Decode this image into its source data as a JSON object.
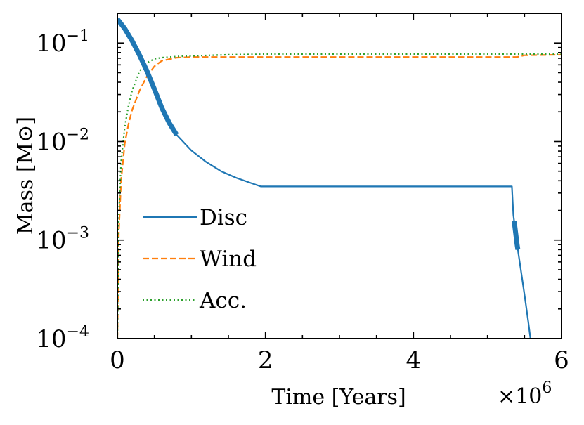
{
  "chart_data": {
    "type": "line",
    "title": "",
    "xlabel": "Time [Years]",
    "ylabel": "Mass [M⊙]",
    "x_multiplier": "×10",
    "x_multiplier_exp": "6",
    "xlim": [
      0,
      6
    ],
    "ylim": [
      0.0001,
      0.2
    ],
    "yscale": "log",
    "grid": false,
    "legend_position": "lower-left",
    "x_ticks": [
      {
        "value": 0,
        "label": "0"
      },
      {
        "value": 2,
        "label": "2"
      },
      {
        "value": 4,
        "label": "4"
      },
      {
        "value": 6,
        "label": "6"
      }
    ],
    "y_ticks": [
      {
        "value": 0.1,
        "base": "10",
        "exp": "−1"
      },
      {
        "value": 0.01,
        "base": "10",
        "exp": "−2"
      },
      {
        "value": 0.001,
        "base": "10",
        "exp": "−3"
      },
      {
        "value": 0.0001,
        "base": "10",
        "exp": "−4"
      }
    ],
    "series": [
      {
        "name": "Disc",
        "color": "#1f77b4",
        "style": "solid",
        "x": [
          0,
          0.1,
          0.2,
          0.3,
          0.4,
          0.5,
          0.6,
          0.7,
          0.8,
          1.0,
          1.2,
          1.4,
          1.6,
          1.8,
          1.94,
          2.5,
          3.0,
          4.0,
          5.0,
          5.33,
          5.35,
          5.4,
          5.45,
          5.5,
          5.55,
          5.58
        ],
        "y": [
          0.175,
          0.14,
          0.105,
          0.075,
          0.052,
          0.034,
          0.022,
          0.0155,
          0.0117,
          0.0081,
          0.0062,
          0.005,
          0.0043,
          0.0038,
          0.0035,
          0.0035,
          0.0035,
          0.0035,
          0.0035,
          0.0035,
          0.0018,
          0.0009,
          0.0005,
          0.00028,
          0.00015,
          0.0001
        ]
      },
      {
        "name": "Wind",
        "color": "#ff7f0e",
        "style": "dashed",
        "x": [
          0,
          0.02,
          0.05,
          0.1,
          0.15,
          0.2,
          0.3,
          0.4,
          0.5,
          0.6,
          0.8,
          1.0,
          1.5,
          2.0,
          3.0,
          4.0,
          5.0,
          5.4,
          5.5,
          6.0
        ],
        "y": [
          0.0001,
          0.0012,
          0.004,
          0.0095,
          0.015,
          0.021,
          0.033,
          0.046,
          0.058,
          0.066,
          0.071,
          0.072,
          0.072,
          0.072,
          0.072,
          0.072,
          0.072,
          0.072,
          0.075,
          0.076
        ]
      },
      {
        "name": "Acc.",
        "color": "#2ca02c",
        "style": "dotted",
        "x": [
          0,
          0.02,
          0.05,
          0.1,
          0.15,
          0.2,
          0.3,
          0.4,
          0.5,
          0.6,
          0.8,
          1.0,
          1.5,
          2.0,
          3.0,
          4.0,
          5.0,
          6.0
        ],
        "y": [
          0.0001,
          0.0018,
          0.0062,
          0.014,
          0.023,
          0.033,
          0.052,
          0.063,
          0.069,
          0.071,
          0.073,
          0.074,
          0.076,
          0.077,
          0.077,
          0.077,
          0.077,
          0.077
        ]
      }
    ],
    "highlight_segments": [
      {
        "series": "Disc",
        "x_range": [
          0,
          0.8
        ]
      },
      {
        "series": "Disc",
        "x_range": [
          5.36,
          5.41
        ]
      }
    ]
  }
}
